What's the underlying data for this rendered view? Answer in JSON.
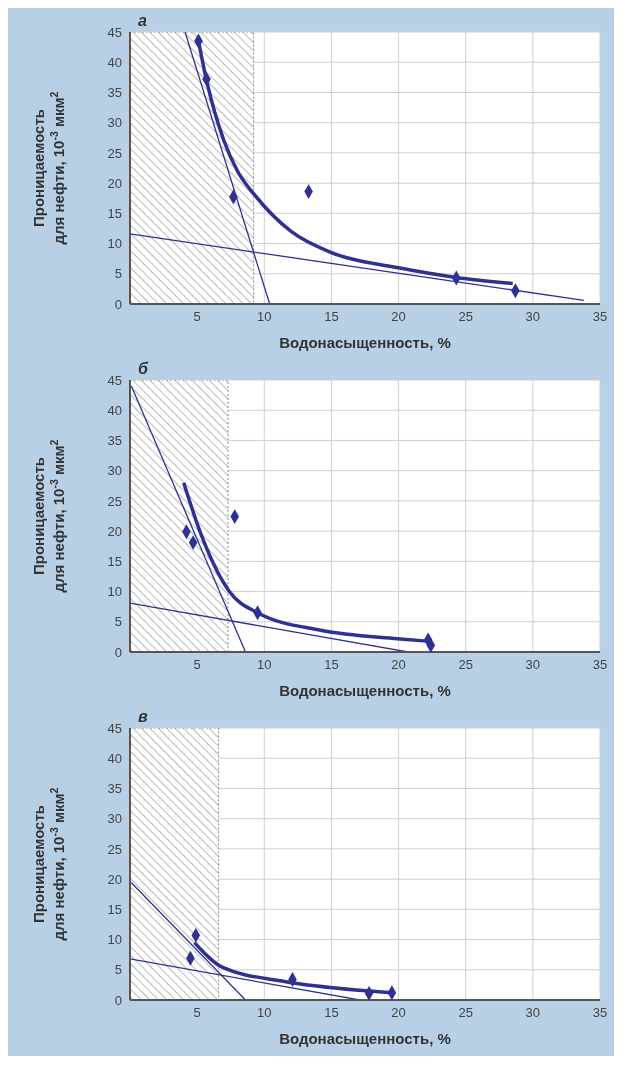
{
  "chart_data": [
    {
      "type": "scatter",
      "title": "а",
      "xlabel": "Водонасыщенность, %",
      "ylabel": "Проницаемость\nдля нефти, 10$^{-3}$ мкм$^{2}$",
      "xlim": [
        0,
        35
      ],
      "xticks": [
        5,
        10,
        15,
        20,
        25,
        30,
        35
      ],
      "ylim": [
        0,
        45
      ],
      "yticks": [
        0,
        5,
        10,
        15,
        20,
        25,
        30,
        35,
        40,
        45
      ],
      "grid": true,
      "bands": [
        {
          "axis": "x",
          "from": 0,
          "to": 9.2,
          "color": "#8c8c8c"
        }
      ],
      "series": [
        {
          "marker": "diamond",
          "color": "#2e3192",
          "x": [
            5.1,
            5.7,
            7.7,
            13.3,
            24.3,
            28.7
          ],
          "values": [
            43.5,
            37.2,
            17.7,
            18.6,
            4.3,
            2.2
          ]
        },
        {
          "type": "line",
          "marker": "none",
          "color": "#2e3192",
          "x": [
            5.1,
            5.7,
            7,
            8,
            9.3,
            12,
            15,
            20,
            24.3,
            28.5
          ],
          "values": [
            43.5,
            37,
            27,
            22,
            18,
            12,
            8.5,
            6,
            4.4,
            3.4
          ]
        },
        {
          "type": "line",
          "marker": "none",
          "color": "#2e3192",
          "x": [
            4.1,
            10.4
          ],
          "values": [
            45,
            0
          ]
        },
        {
          "type": "line",
          "marker": "none",
          "color": "#2e3192",
          "x": [
            0,
            33.8
          ],
          "values": [
            11.6,
            0.6
          ]
        }
      ]
    },
    {
      "type": "scatter",
      "title": "б",
      "xlabel": "Водонасыщенность, %",
      "ylabel": "Проницаемость\nдля нефти, 10$^{-3}$ мкм$^{2}$",
      "xlim": [
        0,
        35
      ],
      "xticks": [
        5,
        10,
        15,
        20,
        25,
        30,
        35
      ],
      "ylim": [
        0,
        45
      ],
      "yticks": [
        0,
        5,
        10,
        15,
        20,
        25,
        30,
        35,
        40,
        45
      ],
      "grid": true,
      "bands": [
        {
          "axis": "x",
          "from": 0,
          "to": 7.3,
          "color": "#8c8c8c"
        }
      ],
      "series": [
        {
          "marker": "diamond",
          "color": "#2e3192",
          "x": [
            4.2,
            4.7,
            7.8,
            9.5,
            22.2,
            22.4
          ],
          "values": [
            19.9,
            18.1,
            22.4,
            6.5,
            2,
            1.1
          ]
        },
        {
          "type": "line",
          "marker": "none",
          "color": "#2e3192",
          "x": [
            4,
            5.3,
            7.4,
            9.5,
            14.2,
            19.9,
            22.1
          ],
          "values": [
            28,
            19.4,
            10,
            6.5,
            3.6,
            2.2,
            1.8
          ]
        },
        {
          "type": "line",
          "marker": "none",
          "color": "#2e3192",
          "x": [
            0.1,
            8.6
          ],
          "values": [
            44,
            0
          ]
        },
        {
          "type": "line",
          "marker": "none",
          "color": "#2e3192",
          "x": [
            0,
            20.7
          ],
          "values": [
            8.1,
            0
          ]
        }
      ]
    },
    {
      "type": "scatter",
      "title": "в",
      "xlabel": "Водонасыщенность, %",
      "ylabel": "Проницаемость\nдля нефти, 10$^{-3}$ мкм$^{2}$",
      "xlim": [
        0,
        35
      ],
      "xticks": [
        5,
        10,
        15,
        20,
        25,
        30,
        35
      ],
      "ylim": [
        0,
        45
      ],
      "yticks": [
        0,
        5,
        10,
        15,
        20,
        25,
        30,
        35,
        40,
        45
      ],
      "grid": true,
      "bands": [
        {
          "axis": "x",
          "from": 0,
          "to": 6.6,
          "color": "#8c8c8c"
        }
      ],
      "series": [
        {
          "marker": "diamond",
          "color": "#2e3192",
          "x": [
            4.5,
            4.9,
            12.1,
            17.8,
            19.5
          ],
          "values": [
            6.9,
            10.7,
            3.4,
            1.1,
            1.2
          ]
        },
        {
          "type": "line",
          "marker": "none",
          "color": "#2e3192",
          "x": [
            4.8,
            6.9,
            11.4,
            17.1,
            19.5
          ],
          "values": [
            9.5,
            5.4,
            3.1,
            1.6,
            1.2
          ]
        },
        {
          "type": "line",
          "marker": "none",
          "color": "#2e3192",
          "x": [
            0.1,
            8.6
          ],
          "values": [
            19.4,
            0
          ]
        },
        {
          "type": "line",
          "marker": "none",
          "color": "#2e3192",
          "x": [
            0,
            17.1
          ],
          "values": [
            6.8,
            0
          ]
        }
      ]
    }
  ]
}
